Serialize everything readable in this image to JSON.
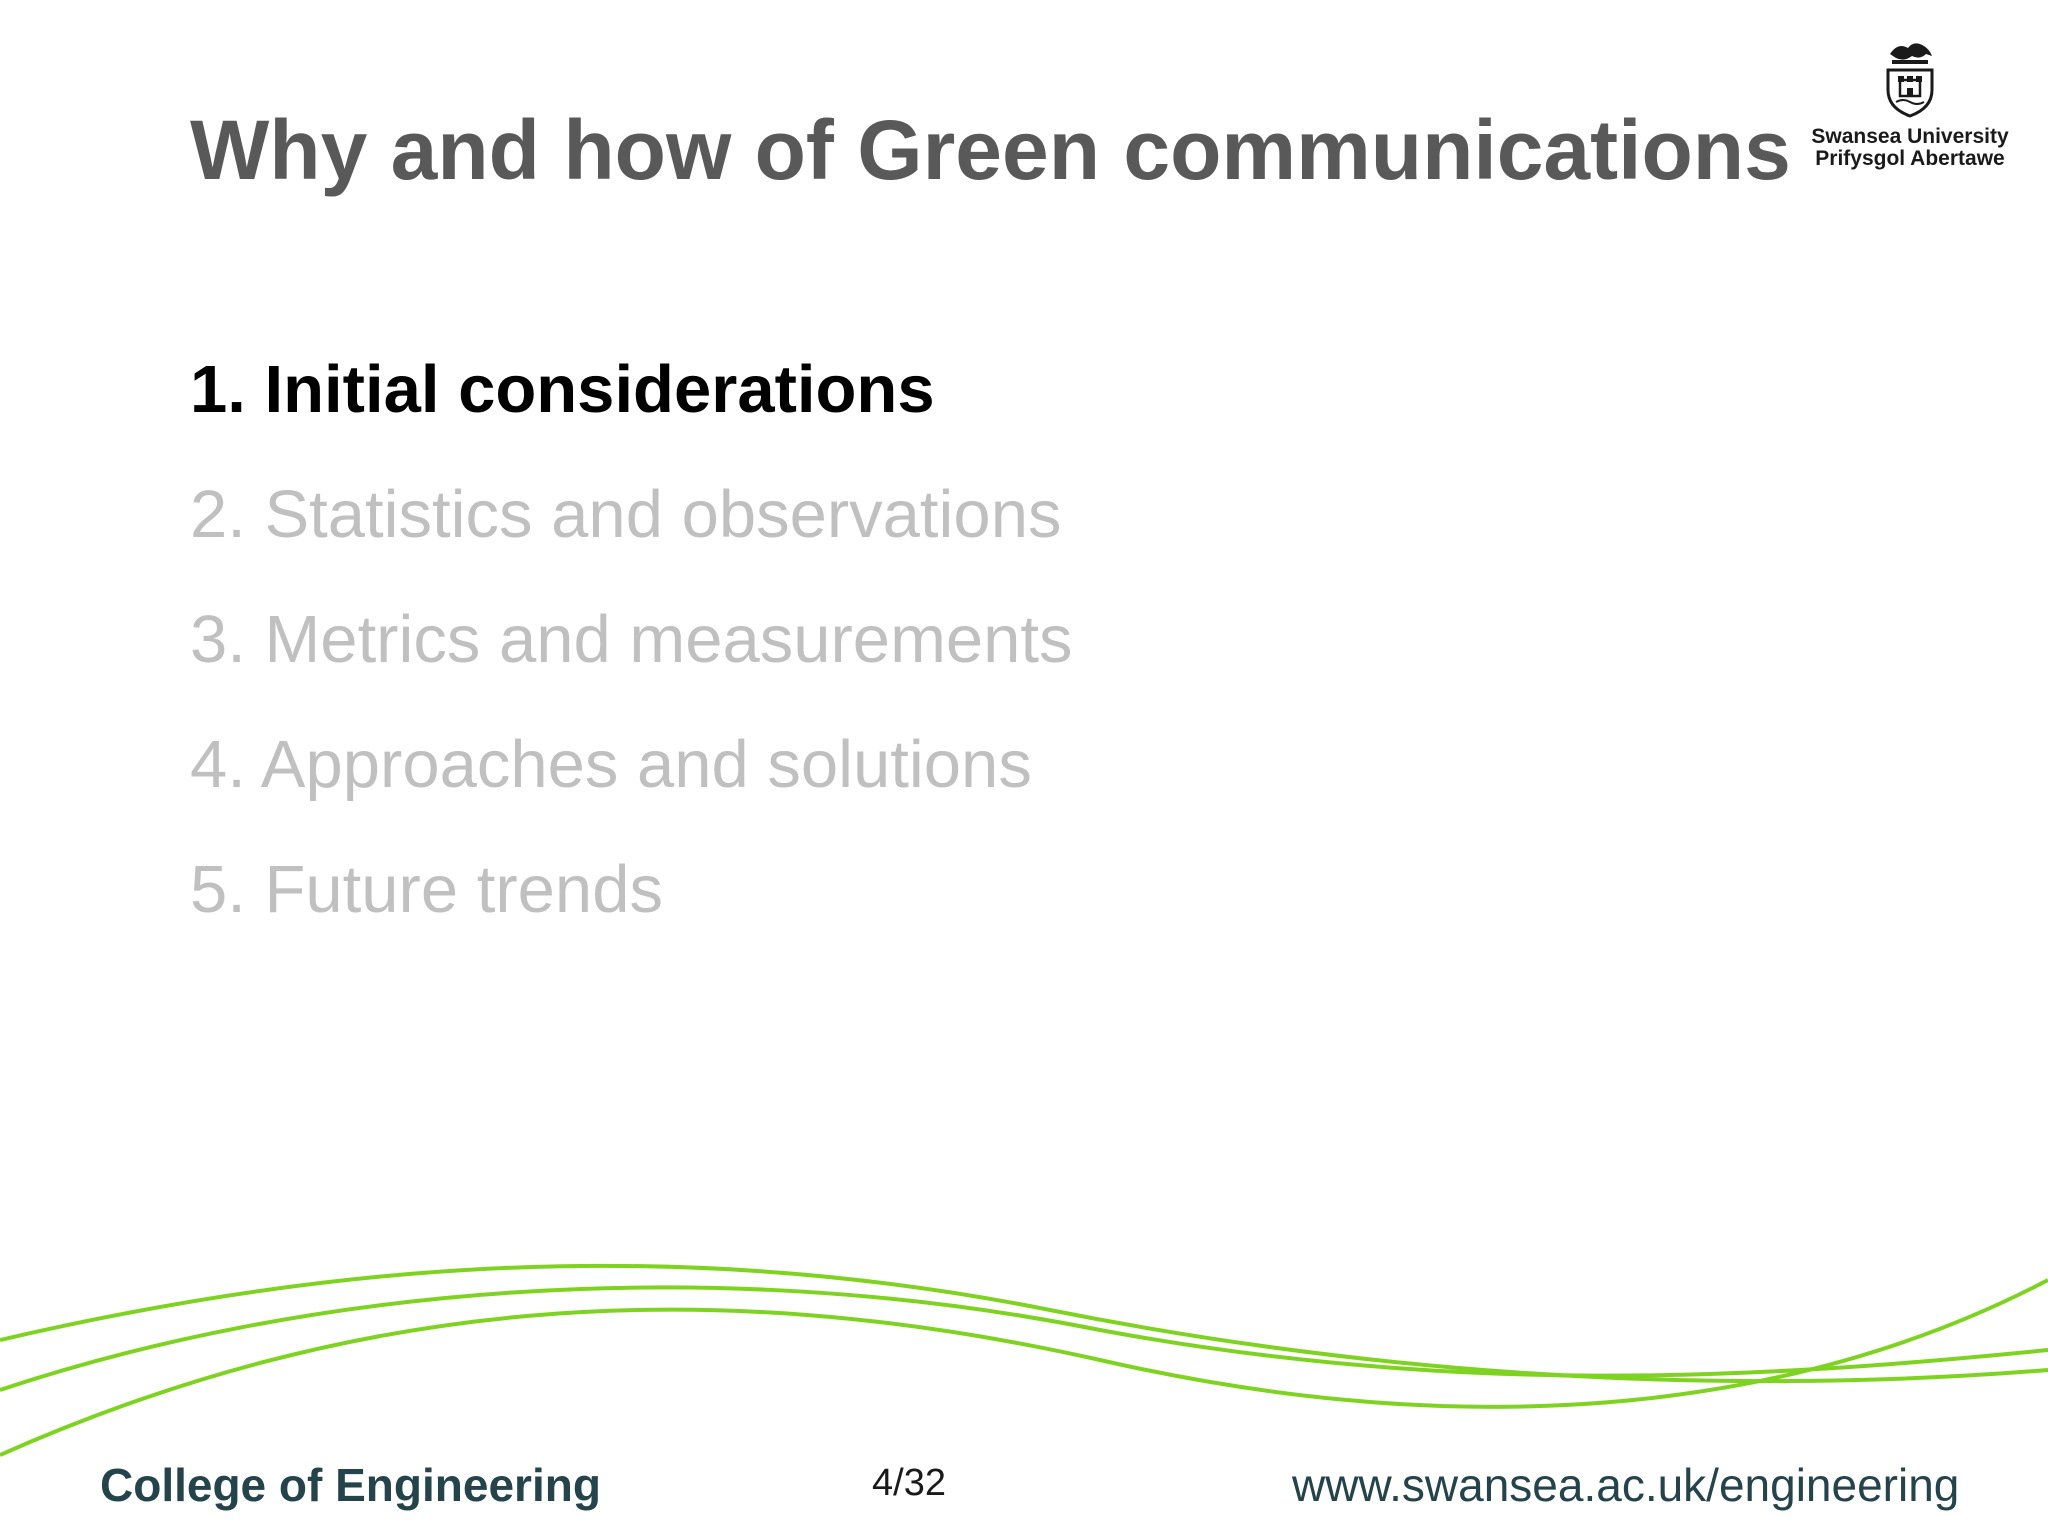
{
  "slide": {
    "title": "Why and how of Green communications",
    "logo": {
      "line1": "Swansea University",
      "line2": "Prifysgol Abertawe",
      "icon": "university-crest-icon"
    },
    "agenda": [
      {
        "label": "1. Initial considerations",
        "active": true
      },
      {
        "label": "2. Statistics and observations",
        "active": false
      },
      {
        "label": "3. Metrics and measurements",
        "active": false
      },
      {
        "label": "4. Approaches and solutions",
        "active": false
      },
      {
        "label": "5. Future trends",
        "active": false
      }
    ],
    "footer": {
      "college": "College of Engineering",
      "page": "4/32",
      "url": "www.swansea.ac.uk/engineering"
    },
    "colors": {
      "title": "#595959",
      "active_item": "#000000",
      "inactive_item": "#c0c0c0",
      "wave": "#7ed321",
      "footer_text": "#24434a"
    }
  }
}
